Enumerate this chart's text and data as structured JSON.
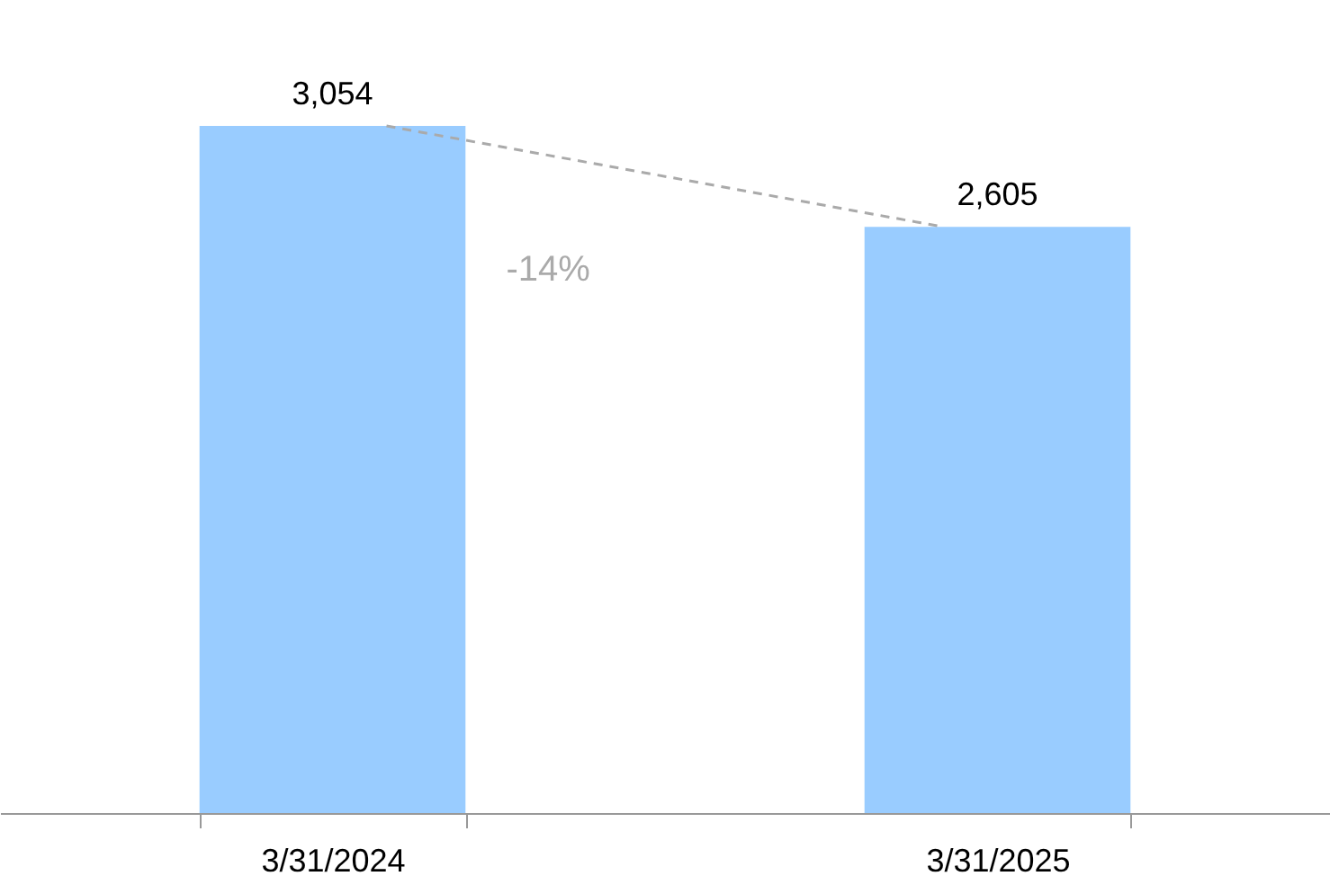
{
  "chart_data": {
    "type": "bar",
    "categories": [
      "3/31/2024",
      "3/31/2025"
    ],
    "values": [
      3054,
      2605
    ],
    "value_labels": [
      "3,054",
      "2,605"
    ],
    "color": "#99ccff",
    "annotations": [
      "-14%"
    ]
  }
}
